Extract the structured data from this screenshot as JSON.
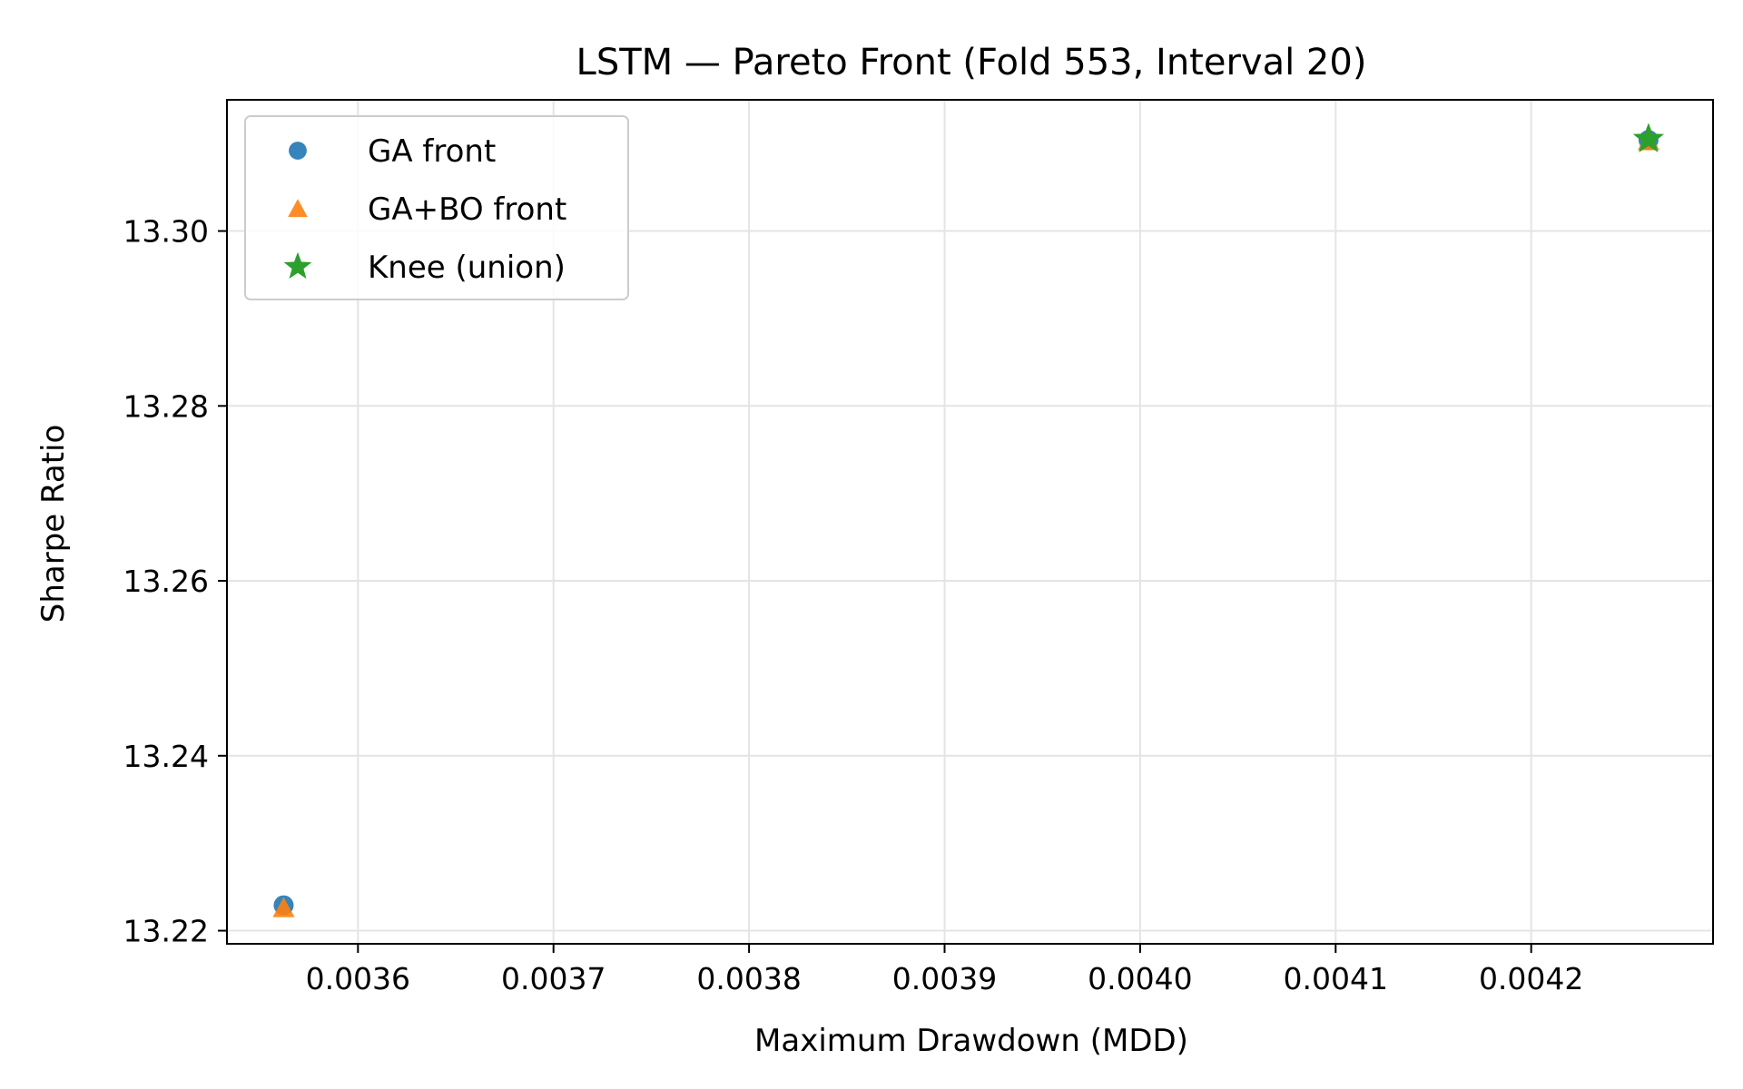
{
  "chart_data": {
    "type": "scatter",
    "title": "LSTM — Pareto Front (Fold 553, Interval 20)",
    "xlabel": "Maximum Drawdown (MDD)",
    "ylabel": "Sharpe Ratio",
    "xlim": [
      0.003533,
      0.004293
    ],
    "ylim": [
      13.2185,
      13.315
    ],
    "xticks": [
      0.0036,
      0.0037,
      0.0038,
      0.0039,
      0.004,
      0.0041,
      0.0042
    ],
    "xtick_labels": [
      "0.0036",
      "0.0037",
      "0.0038",
      "0.0039",
      "0.0040",
      "0.0041",
      "0.0042"
    ],
    "yticks": [
      13.22,
      13.24,
      13.26,
      13.28,
      13.3
    ],
    "ytick_labels": [
      "13.22",
      "13.24",
      "13.26",
      "13.28",
      "13.30"
    ],
    "grid": true,
    "legend_position": "top-left",
    "series": [
      {
        "name": "GA front",
        "marker": "circle",
        "color": "#1f77b4",
        "points": [
          [
            0.003562,
            13.2229
          ],
          [
            0.00426,
            13.3104
          ]
        ]
      },
      {
        "name": "GA+BO front",
        "marker": "triangle",
        "color": "#ff7f0e",
        "points": [
          [
            0.003562,
            13.2226
          ],
          [
            0.00426,
            13.3103
          ]
        ]
      },
      {
        "name": "Knee (union)",
        "marker": "star",
        "color": "#2ca02c",
        "points": [
          [
            0.00426,
            13.3105
          ]
        ]
      }
    ]
  }
}
